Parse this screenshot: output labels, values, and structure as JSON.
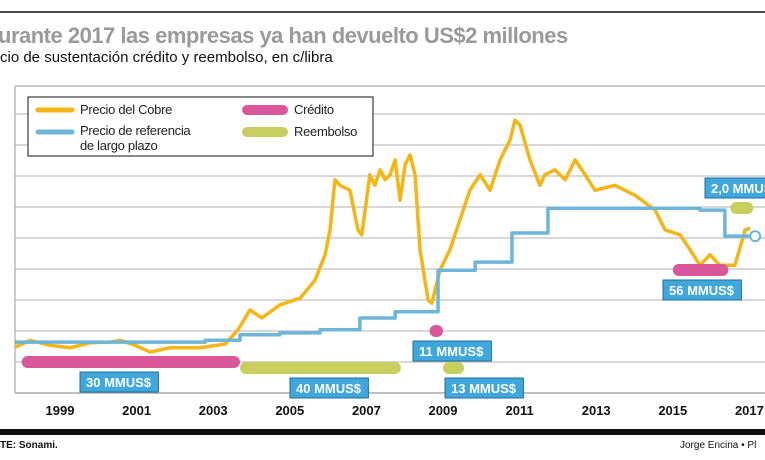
{
  "title": "urante 2017 las empresas ya han devuelto US$2 millones",
  "subtitle": "cio de sustentación crédito y reembolso, en c/libra",
  "footer": {
    "source": "TE: Sonami.",
    "credit": "Jorge Encina  • Pl"
  },
  "colors": {
    "copper": "#f5b514",
    "reference": "#6cb6da",
    "credit": "#d9579a",
    "refund": "#c9cf5e",
    "label_box": "#3fa7dc",
    "title": "#9a9a9a"
  },
  "chart_data": {
    "type": "line",
    "title": "urante 2017 las empresas ya han devuelto US$2 millones",
    "ylabel": "c/libra",
    "xlim": [
      1997.8,
      2017.3
    ],
    "ylim": [
      0,
      480
    ],
    "grid": true,
    "legend_placement": "top-left",
    "legend": [
      {
        "key": "copper",
        "label": "Precio del Cobre"
      },
      {
        "key": "reference",
        "label": "Precio de referencia\nde largo plazo",
        "label_lines": [
          "Precio de referencia",
          "de largo plazo"
        ]
      },
      {
        "key": "credit",
        "label": "Crédito"
      },
      {
        "key": "refund",
        "label": "Reembolso"
      }
    ],
    "x_ticks": [
      "1999",
      "2001",
      "2003",
      "2005",
      "2007",
      "2009",
      "2011",
      "2013",
      "2015",
      "2017"
    ],
    "series": [
      {
        "name": "Precio del Cobre",
        "key": "copper",
        "x": [
          1997.83,
          1998.22,
          1998.74,
          1999.26,
          1999.78,
          2000.31,
          2000.57,
          2000.96,
          2001.35,
          2001.87,
          2002.66,
          2003.31,
          2003.65,
          2003.96,
          2004.27,
          2004.74,
          2005.27,
          2005.66,
          2005.92,
          2006.05,
          2006.18,
          2006.31,
          2006.57,
          2006.78,
          2006.88,
          2007.09,
          2007.22,
          2007.36,
          2007.49,
          2007.62,
          2007.75,
          2007.88,
          2008.01,
          2008.14,
          2008.27,
          2008.4,
          2008.61,
          2008.71,
          2008.92,
          2009.18,
          2009.44,
          2009.57,
          2009.7,
          2009.97,
          2010.23,
          2010.49,
          2010.75,
          2010.88,
          2011.01,
          2011.27,
          2011.53,
          2011.66,
          2011.92,
          2012.19,
          2012.45,
          2012.71,
          2012.97,
          2013.49,
          2014.01,
          2014.54,
          2014.8,
          2015.19,
          2015.45,
          2015.71,
          2015.97,
          2016.23,
          2016.62,
          2016.89,
          2017.02
        ],
        "y": [
          74,
          85,
          77,
          73,
          81,
          82,
          85,
          77,
          66,
          73,
          73,
          79,
          102,
          134,
          121,
          142,
          153,
          182,
          223,
          263,
          344,
          335,
          327,
          263,
          255,
          352,
          335,
          360,
          344,
          352,
          376,
          311,
          368,
          384,
          352,
          231,
          150,
          145,
          198,
          231,
          279,
          303,
          327,
          352,
          327,
          376,
          408,
          440,
          432,
          376,
          335,
          352,
          360,
          344,
          376,
          352,
          327,
          335,
          319,
          295,
          263,
          255,
          231,
          206,
          223,
          206,
          206,
          263,
          266
        ]
      },
      {
        "name": "Precio de referencia de largo plazo",
        "key": "reference",
        "step": true,
        "x": [
          1997.83,
          2002.79,
          2003.7,
          2004.74,
          2005.79,
          2006.83,
          2007.75,
          2008.87,
          2009.84,
          2010.8,
          2011.74,
          2015.71,
          2016.36,
          2017.15
        ],
        "y": [
          82,
          85,
          94,
          97,
          102,
          121,
          131,
          198,
          211,
          258,
          298,
          295,
          253,
          253
        ]
      }
    ],
    "bars": [
      {
        "key": "credit",
        "from": 1998.0,
        "to": 2003.7,
        "label": "30 MMUS$"
      },
      {
        "key": "refund",
        "from": 2003.7,
        "to": 2007.9,
        "label": "40 MMUS$"
      },
      {
        "key": "credit",
        "from": 2008.65,
        "to": 2009.0,
        "label": "11 MMUS$"
      },
      {
        "key": "refund",
        "from": 2009.0,
        "to": 2009.55,
        "label": "13 MMUS$"
      },
      {
        "key": "credit",
        "from": 2015.0,
        "to": 2016.45,
        "label": "56 MMUS$"
      },
      {
        "key": "refund",
        "from": 2016.5,
        "to": 2017.1,
        "label": "2,0 MMUS$"
      }
    ]
  }
}
